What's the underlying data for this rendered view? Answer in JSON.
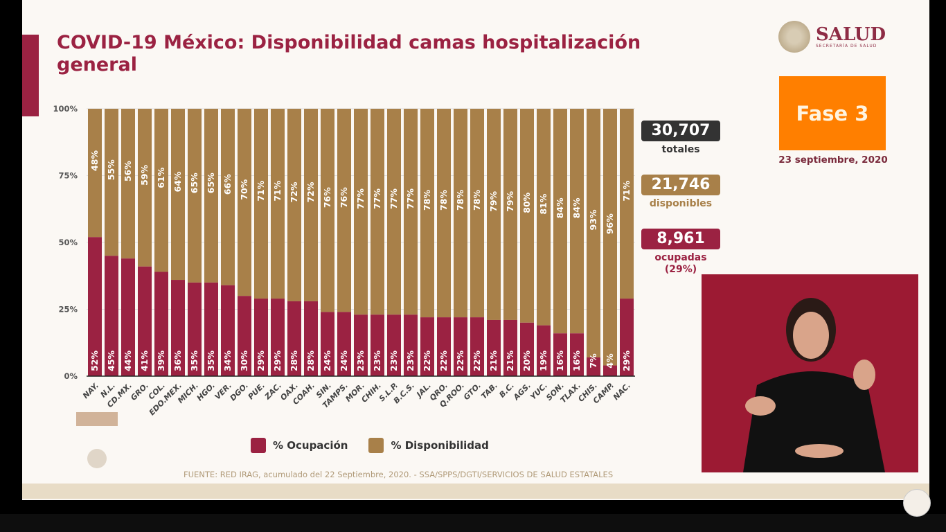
{
  "title": "COVID-19 México: Disponibilidad camas hospitalización general",
  "logo": {
    "name": "SALUD",
    "subtitle": "SECRETARÍA DE SALUD"
  },
  "phase": "Fase 3",
  "date": "23 septiembre, 2020",
  "stats": {
    "total": {
      "value": "30,707",
      "label": "totales"
    },
    "available": {
      "value": "21,746",
      "label": "disponibles"
    },
    "occupied": {
      "value": "8,961",
      "label": "ocupadas",
      "pct": "(29%)"
    }
  },
  "source": "FUENTE: RED IRAG, acumulado del 22 Septiembre, 2020. -  SSA/SPPS/DGTI/SERVICIOS DE SALUD ESTATALES",
  "colors": {
    "ocupacion": "#9b2242",
    "disponibilidad": "#a88049",
    "total_box": "#333333",
    "phase": "#ff7f00"
  },
  "chart_data": {
    "type": "bar",
    "stacked": true,
    "percent_stacked": true,
    "categories": [
      "NAY.",
      "N.L.",
      "CD.MX.",
      "GRO.",
      "COL.",
      "EDO.MEX.",
      "MICH.",
      "HGO.",
      "VER.",
      "DGO.",
      "PUE.",
      "ZAC.",
      "OAX.",
      "COAH.",
      "SIN.",
      "TAMPS.",
      "MOR.",
      "CHIH.",
      "S.L.P.",
      "B.C.S.",
      "JAL.",
      "QRO.",
      "Q.ROO.",
      "GTO.",
      "TAB.",
      "B.C.",
      "AGS.",
      "YUC.",
      "SON.",
      "TLAX.",
      "CHIS.",
      "CAMP.",
      "NAC."
    ],
    "series": [
      {
        "name": "% Ocupación",
        "values": [
          52,
          45,
          44,
          41,
          39,
          36,
          35,
          35,
          34,
          30,
          29,
          29,
          28,
          28,
          24,
          24,
          23,
          23,
          23,
          23,
          22,
          22,
          22,
          22,
          21,
          21,
          20,
          19,
          16,
          16,
          7,
          4,
          29
        ]
      },
      {
        "name": "% Disponibilidad",
        "values": [
          48,
          55,
          56,
          59,
          61,
          64,
          65,
          65,
          66,
          70,
          71,
          71,
          72,
          72,
          76,
          76,
          77,
          77,
          77,
          77,
          78,
          78,
          78,
          78,
          79,
          79,
          80,
          81,
          84,
          84,
          93,
          96,
          71
        ]
      }
    ],
    "yticks": [
      "0%",
      "25%",
      "50%",
      "75%",
      "100%"
    ],
    "ylim": [
      0,
      100
    ],
    "legend": "bottom",
    "grid": true
  }
}
